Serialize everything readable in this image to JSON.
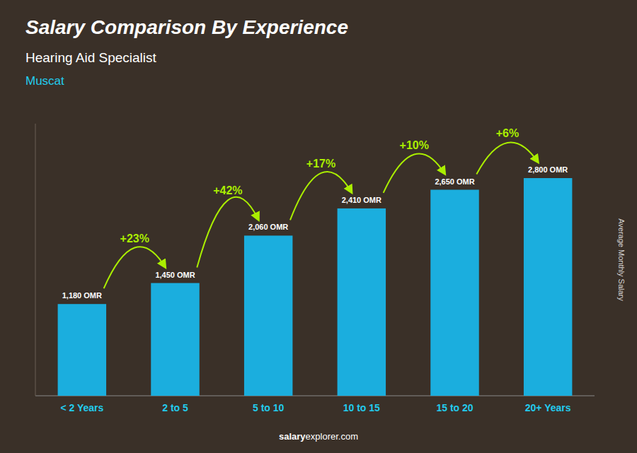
{
  "chart_data": {
    "type": "bar",
    "title": "Salary Comparison By Experience",
    "subtitle": "Hearing Aid Specialist",
    "location": "Muscat",
    "ylabel": "Average Monthly Salary",
    "footer": [
      "salary",
      "explorer.com"
    ],
    "categories": [
      "< 2 Years",
      "2 to 5",
      "5 to 10",
      "10 to 15",
      "15 to 20",
      "20+ Years"
    ],
    "values": [
      1180,
      1450,
      2060,
      2410,
      2650,
      2800
    ],
    "value_labels": [
      "1,180 OMR",
      "1,450 OMR",
      "2,060 OMR",
      "2,410 OMR",
      "2,650 OMR",
      "2,800 OMR"
    ],
    "data_labels": true,
    "annotations": [
      "+23%",
      "+42%",
      "+17%",
      "+10%",
      "+6%"
    ],
    "color": "#1BAEDE",
    "ylim": [
      0,
      3500
    ],
    "tick_labels": "x",
    "grid": false
  }
}
